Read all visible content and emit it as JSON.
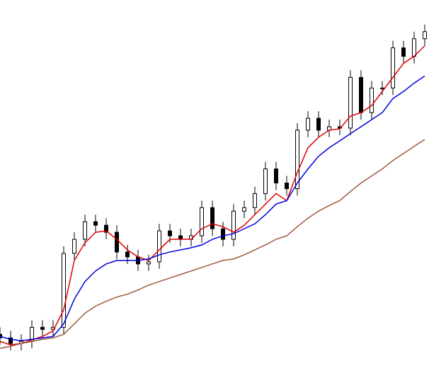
{
  "chart_data": {
    "type": "candlestick",
    "ylim": [
      0,
      520
    ],
    "candle_color": "#000000",
    "open": [
      45,
      40,
      32,
      35,
      55,
      52,
      55,
      160,
      180,
      205,
      200,
      190,
      162,
      155,
      145,
      148,
      192,
      185,
      180,
      185,
      225,
      195,
      180,
      220,
      225,
      245,
      280,
      260,
      252,
      335,
      352,
      335,
      340,
      338,
      410,
      360,
      395,
      395,
      452,
      440,
      465
    ],
    "high": [
      55,
      50,
      45,
      65,
      65,
      65,
      170,
      190,
      215,
      215,
      210,
      200,
      172,
      165,
      158,
      202,
      202,
      195,
      195,
      235,
      235,
      205,
      230,
      235,
      255,
      290,
      290,
      270,
      345,
      362,
      362,
      350,
      350,
      420,
      420,
      405,
      405,
      462,
      462,
      475,
      485
    ],
    "low": [
      30,
      22,
      22,
      25,
      42,
      42,
      45,
      150,
      170,
      190,
      180,
      152,
      145,
      135,
      135,
      138,
      175,
      170,
      170,
      175,
      185,
      170,
      170,
      210,
      215,
      235,
      250,
      242,
      242,
      325,
      325,
      325,
      328,
      328,
      350,
      350,
      385,
      385,
      430,
      430,
      455
    ],
    "close": [
      40,
      32,
      35,
      55,
      52,
      55,
      160,
      180,
      205,
      200,
      190,
      162,
      155,
      145,
      148,
      192,
      185,
      180,
      185,
      225,
      195,
      180,
      220,
      225,
      245,
      280,
      260,
      252,
      335,
      352,
      335,
      340,
      338,
      410,
      360,
      395,
      395,
      452,
      440,
      465,
      475
    ],
    "series": [
      {
        "color": "#e00000",
        "values": [
          35,
          30,
          32,
          37,
          42,
          50,
          80,
          150,
          175,
          190,
          192,
          180,
          165,
          155,
          150,
          165,
          180,
          180,
          180,
          195,
          202,
          198,
          190,
          200,
          215,
          230,
          245,
          235,
          275,
          310,
          325,
          335,
          337,
          355,
          360,
          370,
          390,
          410,
          430,
          440,
          455
        ]
      },
      {
        "color": "#0000e0",
        "values": [
          42,
          38,
          36,
          38,
          40,
          42,
          60,
          95,
          120,
          135,
          145,
          150,
          150,
          150,
          152,
          158,
          162,
          165,
          168,
          172,
          180,
          185,
          188,
          195,
          202,
          215,
          230,
          235,
          260,
          280,
          298,
          310,
          320,
          330,
          340,
          350,
          360,
          380,
          390,
          402,
          412
        ]
      },
      {
        "color": "#9c5a3c",
        "values": [
          25,
          28,
          32,
          35,
          38,
          40,
          45,
          60,
          75,
          85,
          92,
          98,
          102,
          108,
          115,
          120,
          125,
          130,
          135,
          140,
          145,
          150,
          152,
          158,
          165,
          172,
          180,
          185,
          198,
          210,
          220,
          228,
          235,
          248,
          260,
          270,
          280,
          292,
          302,
          312,
          322
        ]
      }
    ]
  }
}
